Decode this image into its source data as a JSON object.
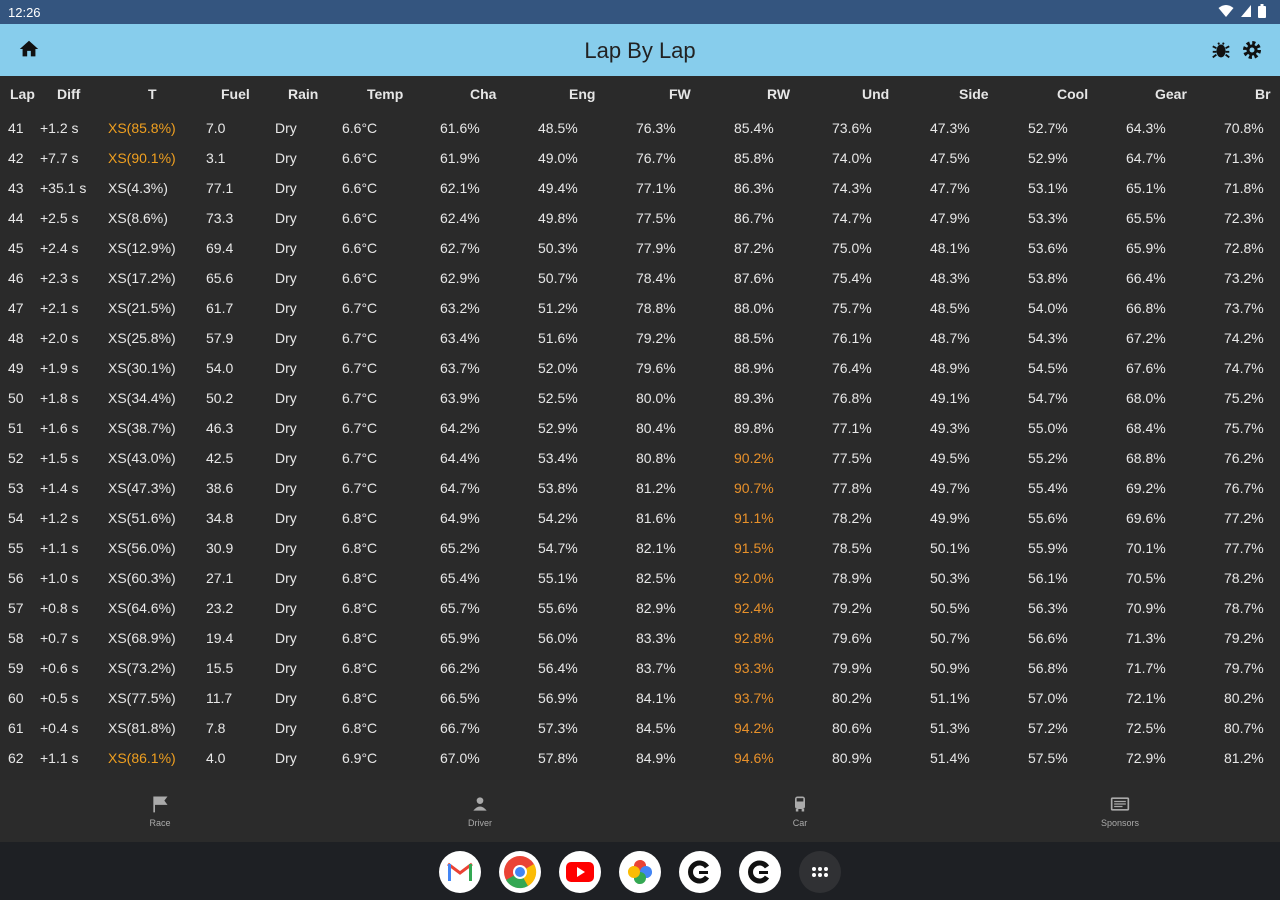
{
  "status_bar": {
    "time": "12:26"
  },
  "app_bar": {
    "title": "Lap By Lap"
  },
  "columns": [
    {
      "key": "lap",
      "label": "Lap"
    },
    {
      "key": "diff",
      "label": "Diff"
    },
    {
      "key": "t",
      "label": "T"
    },
    {
      "key": "fuel",
      "label": "Fuel"
    },
    {
      "key": "rain",
      "label": "Rain"
    },
    {
      "key": "temp",
      "label": "Temp"
    },
    {
      "key": "cha",
      "label": "Cha"
    },
    {
      "key": "eng",
      "label": "Eng"
    },
    {
      "key": "fw",
      "label": "FW"
    },
    {
      "key": "rw",
      "label": "RW"
    },
    {
      "key": "und",
      "label": "Und"
    },
    {
      "key": "side",
      "label": "Side"
    },
    {
      "key": "cool",
      "label": "Cool"
    },
    {
      "key": "gear",
      "label": "Gear"
    },
    {
      "key": "br",
      "label": "Br"
    }
  ],
  "rows": [
    {
      "lap": "41",
      "diff": "+1.2 s",
      "t": "XS(85.8%)",
      "t_warn": true,
      "fuel": "7.0",
      "rain": "Dry",
      "temp": "6.6°C",
      "cha": "61.6%",
      "eng": "48.5%",
      "fw": "76.3%",
      "rw": "85.4%",
      "rw_warn": false,
      "und": "73.6%",
      "side": "47.3%",
      "cool": "52.7%",
      "gear": "64.3%",
      "br": "70.8%"
    },
    {
      "lap": "42",
      "diff": "+7.7 s",
      "t": "XS(90.1%)",
      "t_warn": true,
      "fuel": "3.1",
      "rain": "Dry",
      "temp": "6.6°C",
      "cha": "61.9%",
      "eng": "49.0%",
      "fw": "76.7%",
      "rw": "85.8%",
      "rw_warn": false,
      "und": "74.0%",
      "side": "47.5%",
      "cool": "52.9%",
      "gear": "64.7%",
      "br": "71.3%"
    },
    {
      "lap": "43",
      "diff": "+35.1 s",
      "t": "XS(4.3%)",
      "t_warn": false,
      "fuel": "77.1",
      "rain": "Dry",
      "temp": "6.6°C",
      "cha": "62.1%",
      "eng": "49.4%",
      "fw": "77.1%",
      "rw": "86.3%",
      "rw_warn": false,
      "und": "74.3%",
      "side": "47.7%",
      "cool": "53.1%",
      "gear": "65.1%",
      "br": "71.8%"
    },
    {
      "lap": "44",
      "diff": "+2.5 s",
      "t": "XS(8.6%)",
      "t_warn": false,
      "fuel": "73.3",
      "rain": "Dry",
      "temp": "6.6°C",
      "cha": "62.4%",
      "eng": "49.8%",
      "fw": "77.5%",
      "rw": "86.7%",
      "rw_warn": false,
      "und": "74.7%",
      "side": "47.9%",
      "cool": "53.3%",
      "gear": "65.5%",
      "br": "72.3%"
    },
    {
      "lap": "45",
      "diff": "+2.4 s",
      "t": "XS(12.9%)",
      "t_warn": false,
      "fuel": "69.4",
      "rain": "Dry",
      "temp": "6.6°C",
      "cha": "62.7%",
      "eng": "50.3%",
      "fw": "77.9%",
      "rw": "87.2%",
      "rw_warn": false,
      "und": "75.0%",
      "side": "48.1%",
      "cool": "53.6%",
      "gear": "65.9%",
      "br": "72.8%"
    },
    {
      "lap": "46",
      "diff": "+2.3 s",
      "t": "XS(17.2%)",
      "t_warn": false,
      "fuel": "65.6",
      "rain": "Dry",
      "temp": "6.6°C",
      "cha": "62.9%",
      "eng": "50.7%",
      "fw": "78.4%",
      "rw": "87.6%",
      "rw_warn": false,
      "und": "75.4%",
      "side": "48.3%",
      "cool": "53.8%",
      "gear": "66.4%",
      "br": "73.2%"
    },
    {
      "lap": "47",
      "diff": "+2.1 s",
      "t": "XS(21.5%)",
      "t_warn": false,
      "fuel": "61.7",
      "rain": "Dry",
      "temp": "6.7°C",
      "cha": "63.2%",
      "eng": "51.2%",
      "fw": "78.8%",
      "rw": "88.0%",
      "rw_warn": false,
      "und": "75.7%",
      "side": "48.5%",
      "cool": "54.0%",
      "gear": "66.8%",
      "br": "73.7%"
    },
    {
      "lap": "48",
      "diff": "+2.0 s",
      "t": "XS(25.8%)",
      "t_warn": false,
      "fuel": "57.9",
      "rain": "Dry",
      "temp": "6.7°C",
      "cha": "63.4%",
      "eng": "51.6%",
      "fw": "79.2%",
      "rw": "88.5%",
      "rw_warn": false,
      "und": "76.1%",
      "side": "48.7%",
      "cool": "54.3%",
      "gear": "67.2%",
      "br": "74.2%"
    },
    {
      "lap": "49",
      "diff": "+1.9 s",
      "t": "XS(30.1%)",
      "t_warn": false,
      "fuel": "54.0",
      "rain": "Dry",
      "temp": "6.7°C",
      "cha": "63.7%",
      "eng": "52.0%",
      "fw": "79.6%",
      "rw": "88.9%",
      "rw_warn": false,
      "und": "76.4%",
      "side": "48.9%",
      "cool": "54.5%",
      "gear": "67.6%",
      "br": "74.7%"
    },
    {
      "lap": "50",
      "diff": "+1.8 s",
      "t": "XS(34.4%)",
      "t_warn": false,
      "fuel": "50.2",
      "rain": "Dry",
      "temp": "6.7°C",
      "cha": "63.9%",
      "eng": "52.5%",
      "fw": "80.0%",
      "rw": "89.3%",
      "rw_warn": false,
      "und": "76.8%",
      "side": "49.1%",
      "cool": "54.7%",
      "gear": "68.0%",
      "br": "75.2%"
    },
    {
      "lap": "51",
      "diff": "+1.6 s",
      "t": "XS(38.7%)",
      "t_warn": false,
      "fuel": "46.3",
      "rain": "Dry",
      "temp": "6.7°C",
      "cha": "64.2%",
      "eng": "52.9%",
      "fw": "80.4%",
      "rw": "89.8%",
      "rw_warn": false,
      "und": "77.1%",
      "side": "49.3%",
      "cool": "55.0%",
      "gear": "68.4%",
      "br": "75.7%"
    },
    {
      "lap": "52",
      "diff": "+1.5 s",
      "t": "XS(43.0%)",
      "t_warn": false,
      "fuel": "42.5",
      "rain": "Dry",
      "temp": "6.7°C",
      "cha": "64.4%",
      "eng": "53.4%",
      "fw": "80.8%",
      "rw": "90.2%",
      "rw_warn": true,
      "und": "77.5%",
      "side": "49.5%",
      "cool": "55.2%",
      "gear": "68.8%",
      "br": "76.2%"
    },
    {
      "lap": "53",
      "diff": "+1.4 s",
      "t": "XS(47.3%)",
      "t_warn": false,
      "fuel": "38.6",
      "rain": "Dry",
      "temp": "6.7°C",
      "cha": "64.7%",
      "eng": "53.8%",
      "fw": "81.2%",
      "rw": "90.7%",
      "rw_warn": true,
      "und": "77.8%",
      "side": "49.7%",
      "cool": "55.4%",
      "gear": "69.2%",
      "br": "76.7%"
    },
    {
      "lap": "54",
      "diff": "+1.2 s",
      "t": "XS(51.6%)",
      "t_warn": false,
      "fuel": "34.8",
      "rain": "Dry",
      "temp": "6.8°C",
      "cha": "64.9%",
      "eng": "54.2%",
      "fw": "81.6%",
      "rw": "91.1%",
      "rw_warn": true,
      "und": "78.2%",
      "side": "49.9%",
      "cool": "55.6%",
      "gear": "69.6%",
      "br": "77.2%"
    },
    {
      "lap": "55",
      "diff": "+1.1 s",
      "t": "XS(56.0%)",
      "t_warn": false,
      "fuel": "30.9",
      "rain": "Dry",
      "temp": "6.8°C",
      "cha": "65.2%",
      "eng": "54.7%",
      "fw": "82.1%",
      "rw": "91.5%",
      "rw_warn": true,
      "und": "78.5%",
      "side": "50.1%",
      "cool": "55.9%",
      "gear": "70.1%",
      "br": "77.7%"
    },
    {
      "lap": "56",
      "diff": "+1.0 s",
      "t": "XS(60.3%)",
      "t_warn": false,
      "fuel": "27.1",
      "rain": "Dry",
      "temp": "6.8°C",
      "cha": "65.4%",
      "eng": "55.1%",
      "fw": "82.5%",
      "rw": "92.0%",
      "rw_warn": true,
      "und": "78.9%",
      "side": "50.3%",
      "cool": "56.1%",
      "gear": "70.5%",
      "br": "78.2%"
    },
    {
      "lap": "57",
      "diff": "+0.8 s",
      "t": "XS(64.6%)",
      "t_warn": false,
      "fuel": "23.2",
      "rain": "Dry",
      "temp": "6.8°C",
      "cha": "65.7%",
      "eng": "55.6%",
      "fw": "82.9%",
      "rw": "92.4%",
      "rw_warn": true,
      "und": "79.2%",
      "side": "50.5%",
      "cool": "56.3%",
      "gear": "70.9%",
      "br": "78.7%"
    },
    {
      "lap": "58",
      "diff": "+0.7 s",
      "t": "XS(68.9%)",
      "t_warn": false,
      "fuel": "19.4",
      "rain": "Dry",
      "temp": "6.8°C",
      "cha": "65.9%",
      "eng": "56.0%",
      "fw": "83.3%",
      "rw": "92.8%",
      "rw_warn": true,
      "und": "79.6%",
      "side": "50.7%",
      "cool": "56.6%",
      "gear": "71.3%",
      "br": "79.2%"
    },
    {
      "lap": "59",
      "diff": "+0.6 s",
      "t": "XS(73.2%)",
      "t_warn": false,
      "fuel": "15.5",
      "rain": "Dry",
      "temp": "6.8°C",
      "cha": "66.2%",
      "eng": "56.4%",
      "fw": "83.7%",
      "rw": "93.3%",
      "rw_warn": true,
      "und": "79.9%",
      "side": "50.9%",
      "cool": "56.8%",
      "gear": "71.7%",
      "br": "79.7%"
    },
    {
      "lap": "60",
      "diff": "+0.5 s",
      "t": "XS(77.5%)",
      "t_warn": false,
      "fuel": "11.7",
      "rain": "Dry",
      "temp": "6.8°C",
      "cha": "66.5%",
      "eng": "56.9%",
      "fw": "84.1%",
      "rw": "93.7%",
      "rw_warn": true,
      "und": "80.2%",
      "side": "51.1%",
      "cool": "57.0%",
      "gear": "72.1%",
      "br": "80.2%"
    },
    {
      "lap": "61",
      "diff": "+0.4 s",
      "t": "XS(81.8%)",
      "t_warn": false,
      "fuel": "7.8",
      "rain": "Dry",
      "temp": "6.8°C",
      "cha": "66.7%",
      "eng": "57.3%",
      "fw": "84.5%",
      "rw": "94.2%",
      "rw_warn": true,
      "und": "80.6%",
      "side": "51.3%",
      "cool": "57.2%",
      "gear": "72.5%",
      "br": "80.7%"
    },
    {
      "lap": "62",
      "diff": "+1.1 s",
      "t": "XS(86.1%)",
      "t_warn": true,
      "fuel": "4.0",
      "rain": "Dry",
      "temp": "6.9°C",
      "cha": "67.0%",
      "eng": "57.8%",
      "fw": "84.9%",
      "rw": "94.6%",
      "rw_warn": true,
      "und": "80.9%",
      "side": "51.4%",
      "cool": "57.5%",
      "gear": "72.9%",
      "br": "81.2%"
    }
  ],
  "colors": {
    "warn_t": "#f0a020",
    "warn_rw": "#e8912a",
    "app_bar": "#87cdec",
    "status_bar": "#34557f"
  },
  "bottom_nav": [
    {
      "label": "Race",
      "icon": "flag-icon"
    },
    {
      "label": "Driver",
      "icon": "person-icon"
    },
    {
      "label": "Car",
      "icon": "car-icon"
    },
    {
      "label": "Sponsors",
      "icon": "sponsors-icon"
    }
  ],
  "dock": [
    {
      "icon": "gmail-icon"
    },
    {
      "icon": "chrome-icon"
    },
    {
      "icon": "youtube-icon"
    },
    {
      "icon": "photos-icon"
    },
    {
      "icon": "app-c-icon"
    },
    {
      "icon": "app-c-icon"
    },
    {
      "icon": "app-drawer-icon"
    }
  ]
}
